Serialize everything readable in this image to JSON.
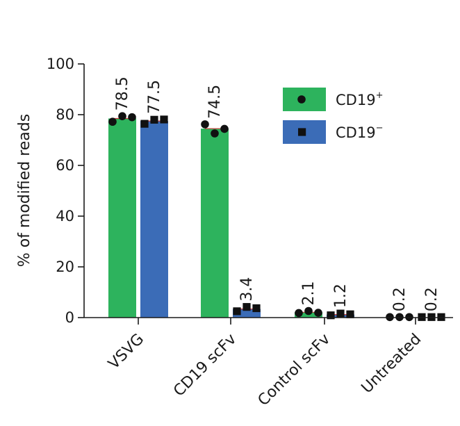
{
  "chart_data": {
    "type": "bar",
    "title": "",
    "xlabel": "",
    "ylabel": "% of modified reads",
    "ylim": [
      0,
      100
    ],
    "yticks": [
      0,
      20,
      40,
      60,
      80,
      100
    ],
    "categories": [
      "VSVG",
      "CD19 scFv",
      "Control scFv",
      "Untreated"
    ],
    "legend_position": "top-right",
    "grid": false,
    "series": [
      {
        "name": "CD19",
        "superscript": "+",
        "marker": "circle",
        "color": "#2db35d",
        "values": [
          78.5,
          74.5,
          2.1,
          0.2
        ],
        "labels": [
          "78.5",
          "74.5",
          "2.1",
          "0.2"
        ],
        "points": [
          [
            77.2,
            79.4,
            79.0
          ],
          [
            76.2,
            72.6,
            74.4
          ],
          [
            1.8,
            2.6,
            1.9
          ],
          [
            0.2,
            0.2,
            0.2
          ]
        ]
      },
      {
        "name": "CD19",
        "superscript": "−",
        "marker": "square",
        "color": "#3b6cb7",
        "values": [
          77.5,
          3.4,
          1.2,
          0.2
        ],
        "labels": [
          "77.5",
          "3.4",
          "1.2",
          "0.2"
        ],
        "points": [
          [
            76.4,
            78.0,
            78.1
          ],
          [
            2.5,
            4.2,
            3.7
          ],
          [
            0.9,
            1.6,
            1.3
          ],
          [
            0.2,
            0.2,
            0.2
          ]
        ]
      }
    ]
  }
}
